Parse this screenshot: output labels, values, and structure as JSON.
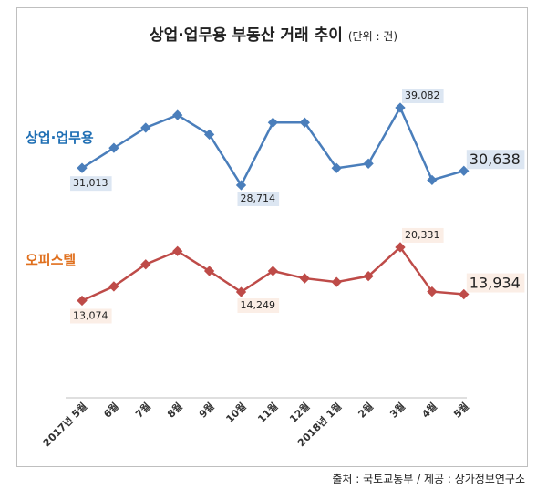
{
  "chart_data": {
    "type": "line",
    "title": "상업·업무용 부동산 거래 추이",
    "unit_note": "(단위 : 건)",
    "categories": [
      "2017년 5월",
      "6월",
      "7월",
      "8월",
      "9월",
      "10월",
      "11월",
      "12월",
      "2018년 1월",
      "2월",
      "3월",
      "4월",
      "5월"
    ],
    "series": [
      {
        "name": "상업·업무용",
        "color": "#4a7ebb",
        "values": [
          31013,
          33700,
          36400,
          38100,
          35500,
          28714,
          37100,
          37100,
          31000,
          31600,
          39082,
          29400,
          30638
        ],
        "labels": {
          "0": "31,013",
          "5": "28,714",
          "10": "39,082",
          "12": "30,638"
        }
      },
      {
        "name": "오피스텔",
        "color": "#be4b48",
        "values": [
          13074,
          15000,
          18000,
          19800,
          17100,
          14249,
          17100,
          16100,
          15600,
          16400,
          20331,
          14300,
          13934
        ],
        "labels": {
          "0": "13,074",
          "5": "14,249",
          "10": "20,331",
          "12": "13,934"
        }
      }
    ],
    "legend_colors": {
      "상업·업무용": "#1f6fb4",
      "오피스텔": "#e0701e"
    },
    "grid": false,
    "y_axis_shown": false
  },
  "source": "출처 : 국토교통부 / 제공 : 상가정보연구소"
}
